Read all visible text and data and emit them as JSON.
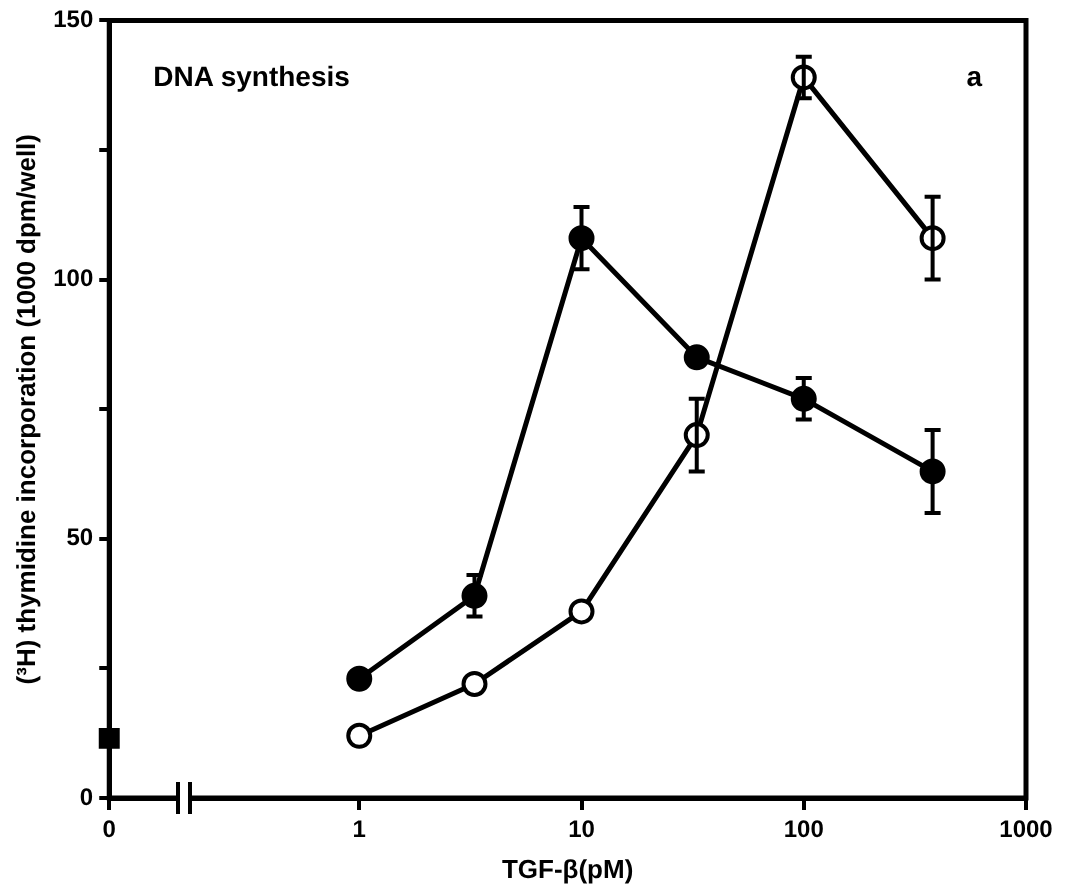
{
  "chart_data": {
    "type": "line",
    "xlabel": "TGF-β(pM)",
    "ylabel": "(³H) thymidine incorporation (1000 dpm/well)",
    "annotations": [
      "DNA synthesis",
      "a"
    ],
    "log": "x",
    "xlim": [
      0.075,
      1000
    ],
    "xticks": [
      {
        "value": 0.075,
        "label": "0"
      },
      1,
      10,
      100,
      1000
    ],
    "ylim": [
      0,
      150
    ],
    "yticks": [
      0,
      {
        "value": 25,
        "label": null
      },
      50,
      {
        "value": 75,
        "label": null
      },
      100,
      {
        "value": 125,
        "label": null
      },
      150
    ],
    "grid": false,
    "legend": false,
    "marker": "circle",
    "line_style": "solid",
    "series": [
      {
        "color": "#000000",
        "x": [
          1,
          3.3,
          10,
          33,
          100,
          380
        ],
        "values": [
          23,
          39,
          108,
          85,
          77,
          63
        ],
        "errors": [
          null,
          4,
          6,
          null,
          4,
          8
        ]
      },
      {
        "color": "#000000",
        "x": [
          1,
          3.3,
          10,
          33,
          100,
          380
        ],
        "values": [
          12,
          22,
          36,
          70,
          139,
          108
        ],
        "errors": [
          null,
          null,
          null,
          7,
          4,
          8
        ]
      },
      {
        "type": "scatter",
        "marker": "square",
        "color": "#000000",
        "x": [
          0.075
        ],
        "values": [
          11.5
        ]
      }
    ]
  }
}
